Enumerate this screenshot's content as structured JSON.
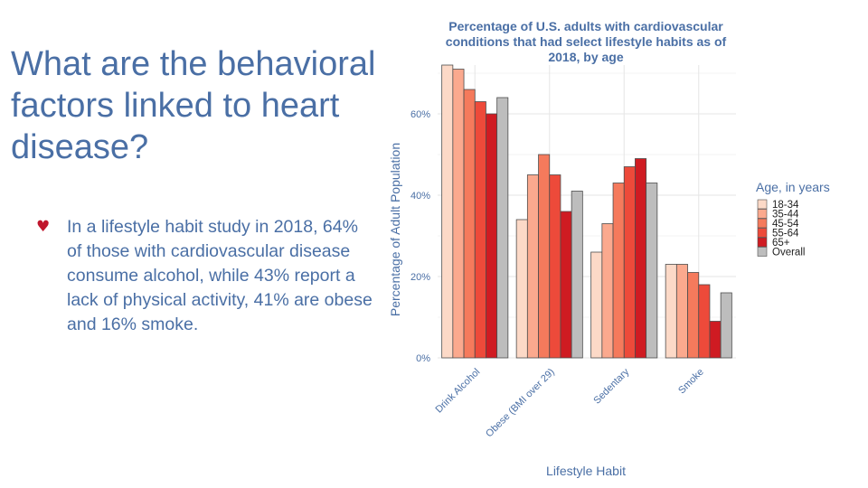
{
  "slide": {
    "title": "What are the behavioral factors linked to heart disease?",
    "bullet": "In a lifestyle habit study in 2018, 64% of those with cardiovascular disease consume alcohol, while 43% report a lack of physical activity, 41% are obese and 16% smoke.",
    "bullet_icon": "heart-icon",
    "colors": {
      "text": "#4a6fa5",
      "bullet": "#c0172d"
    }
  },
  "chart_data": {
    "type": "bar",
    "title_lines": [
      "Percentage of U.S. adults with cardiovascular",
      "conditions that had select lifestyle habits as of",
      "2018, by age"
    ],
    "xlabel": "Lifestyle Habit",
    "ylabel": "Percentage of Adult Population",
    "categories": [
      "Drink Alcohol",
      "Obese (BMI over 29)",
      "Sedentary",
      "Smoke"
    ],
    "y_ticks": [
      0,
      20,
      40,
      60
    ],
    "y_tick_labels": [
      "0%",
      "20%",
      "40%",
      "60%"
    ],
    "ylim": [
      0,
      72
    ],
    "grid": true,
    "legend_title": "Age, in years",
    "legend_position": "right",
    "series": [
      {
        "name": "18-34",
        "color": "#fcd9c7",
        "values": [
          72,
          34,
          26,
          23
        ]
      },
      {
        "name": "35-44",
        "color": "#fba98e",
        "values": [
          71,
          45,
          33,
          23
        ]
      },
      {
        "name": "45-54",
        "color": "#f57a5c",
        "values": [
          66,
          50,
          43,
          21
        ]
      },
      {
        "name": "55-64",
        "color": "#ed4a3a",
        "values": [
          63,
          45,
          47,
          18
        ]
      },
      {
        "name": "65+",
        "color": "#cf1b22",
        "values": [
          60,
          36,
          49,
          9
        ]
      },
      {
        "name": "Overall",
        "color": "#bdbdbd",
        "values": [
          64,
          41,
          43,
          16
        ]
      }
    ]
  }
}
